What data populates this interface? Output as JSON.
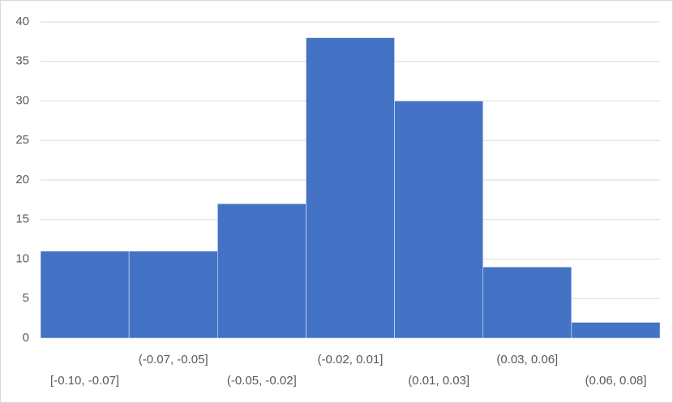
{
  "chart_data": {
    "type": "bar",
    "categories": [
      "[-0.10, -0.07]",
      "(-0.07, -0.05]",
      "(-0.05, -0.02]",
      "(-0.02, 0.01]",
      "(0.01, 0.03]",
      "(0.03, 0.06]",
      "(0.06, 0.08]"
    ],
    "values": [
      11,
      11,
      17,
      38,
      30,
      9,
      2
    ],
    "color": "#4472c4",
    "ylim": [
      0,
      40
    ],
    "yticks": [
      0,
      5,
      10,
      15,
      20,
      25,
      30,
      35,
      40
    ],
    "grid": true
  }
}
